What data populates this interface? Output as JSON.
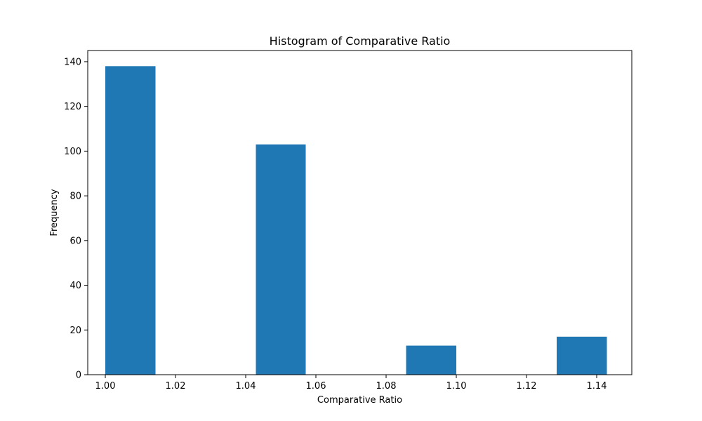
{
  "chart_data": {
    "type": "bar",
    "title": "Histogram of Comparative Ratio",
    "xlabel": "Comparative Ratio",
    "ylabel": "Frequency",
    "xlim": [
      0.995,
      1.15
    ],
    "ylim": [
      0,
      145
    ],
    "x_ticks": [
      1.0,
      1.02,
      1.04,
      1.06,
      1.08,
      1.1,
      1.12,
      1.14
    ],
    "x_tick_labels": [
      "1.00",
      "1.02",
      "1.04",
      "1.06",
      "1.08",
      "1.10",
      "1.12",
      "1.14"
    ],
    "y_ticks": [
      0,
      20,
      40,
      60,
      80,
      100,
      120,
      140
    ],
    "y_tick_labels": [
      "0",
      "20",
      "40",
      "60",
      "80",
      "100",
      "120",
      "140"
    ],
    "grid": false,
    "bar_color": "#1f77b4",
    "bins": [
      {
        "start": 1.0,
        "end": 1.0143,
        "count": 138
      },
      {
        "start": 1.0143,
        "end": 1.0286,
        "count": 0
      },
      {
        "start": 1.0286,
        "end": 1.0429,
        "count": 0
      },
      {
        "start": 1.0429,
        "end": 1.0571,
        "count": 103
      },
      {
        "start": 1.0571,
        "end": 1.0714,
        "count": 0
      },
      {
        "start": 1.0714,
        "end": 1.0857,
        "count": 0
      },
      {
        "start": 1.0857,
        "end": 1.1,
        "count": 13
      },
      {
        "start": 1.1,
        "end": 1.1143,
        "count": 0
      },
      {
        "start": 1.1143,
        "end": 1.1286,
        "count": 0
      },
      {
        "start": 1.1286,
        "end": 1.1429,
        "count": 17
      }
    ]
  }
}
